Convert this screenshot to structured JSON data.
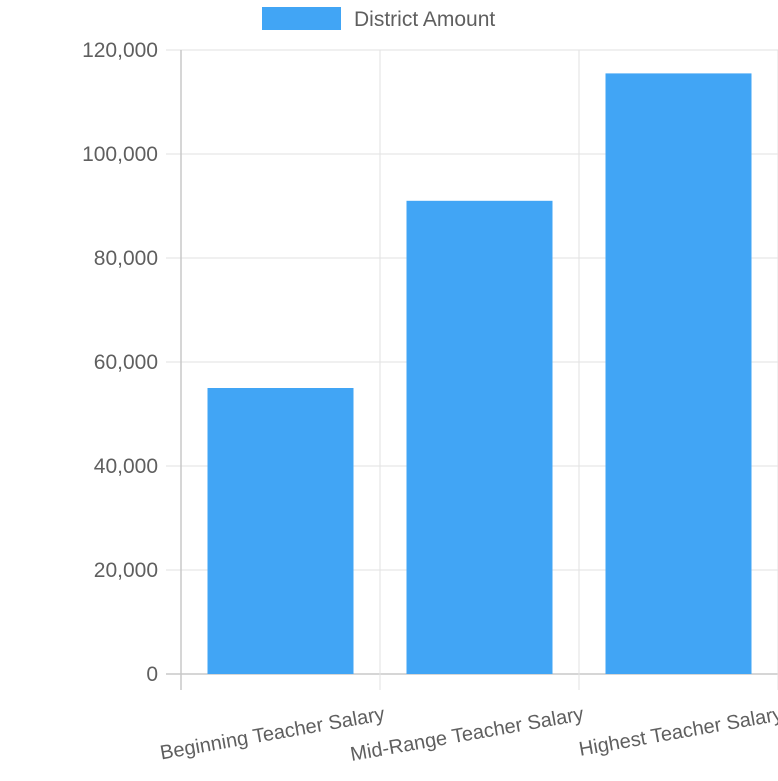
{
  "chart_data": {
    "type": "bar",
    "categories": [
      "Beginning Teacher Salary",
      "Mid-Range Teacher Salary",
      "Highest Teacher Salary"
    ],
    "series": [
      {
        "name": "District Amount",
        "color": "#41a5f5",
        "values": [
          55000,
          91000,
          115500
        ]
      }
    ],
    "ylim": [
      0,
      120000
    ],
    "y_ticks": [
      0,
      20000,
      40000,
      60000,
      80000,
      100000,
      120000
    ],
    "y_tick_labels": [
      "0",
      "20,000",
      "40,000",
      "60,000",
      "80,000",
      "100,000",
      "120,000"
    ],
    "grid": true,
    "legend_position": "top-center"
  }
}
